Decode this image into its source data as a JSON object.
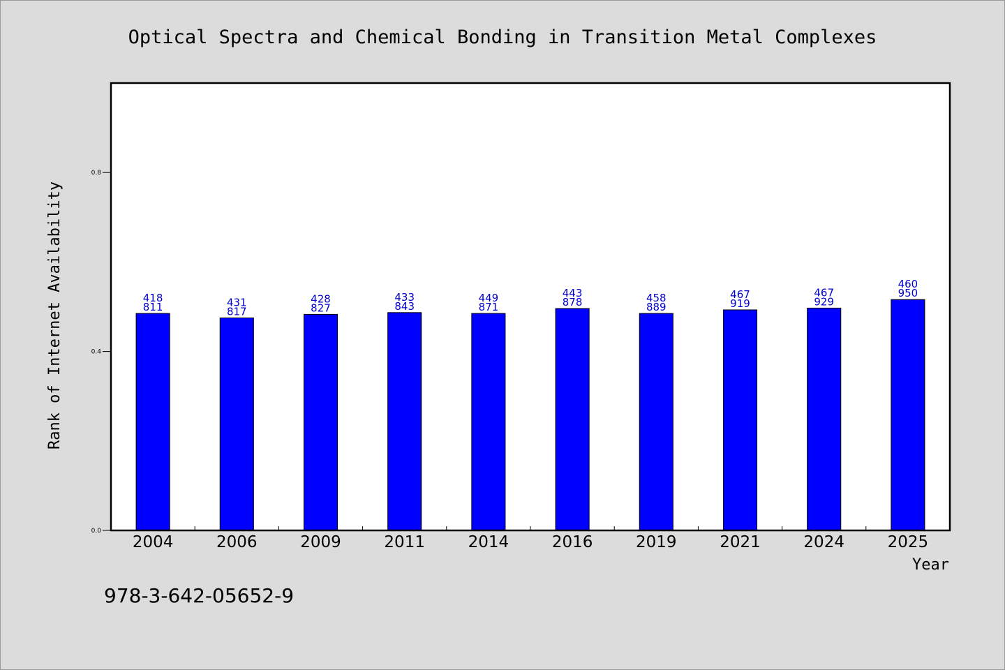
{
  "chart_data": {
    "type": "bar",
    "title": "Optical Spectra and Chemical Bonding in Transition Metal Complexes",
    "xlabel": "Year",
    "ylabel": "Rank of Internet Availability",
    "categories": [
      "2004",
      "2006",
      "2009",
      "2011",
      "2014",
      "2016",
      "2019",
      "2021",
      "2024",
      "2025"
    ],
    "values": [
      0.485,
      0.475,
      0.483,
      0.487,
      0.485,
      0.496,
      0.485,
      0.493,
      0.497,
      0.516
    ],
    "bar_labels": [
      [
        "418",
        "811"
      ],
      [
        "431",
        "817"
      ],
      [
        "428",
        "827"
      ],
      [
        "433",
        "843"
      ],
      [
        "449",
        "871"
      ],
      [
        "443",
        "878"
      ],
      [
        "458",
        "889"
      ],
      [
        "467",
        "919"
      ],
      [
        "467",
        "929"
      ],
      [
        "460",
        "950"
      ]
    ],
    "ylim": [
      0,
      1.0
    ],
    "yticks": [
      0.0,
      0.4,
      0.8
    ],
    "ytick_labels": [
      "0.0",
      "0.4",
      "0.8"
    ],
    "grid": false,
    "legend": "none",
    "bar_color": "#0000ff",
    "label_color": "#0000cc",
    "plot_background": "#ffffff",
    "figure_background": "#dcdcdc"
  },
  "footer": {
    "isbn": "978-3-642-05652-9"
  }
}
